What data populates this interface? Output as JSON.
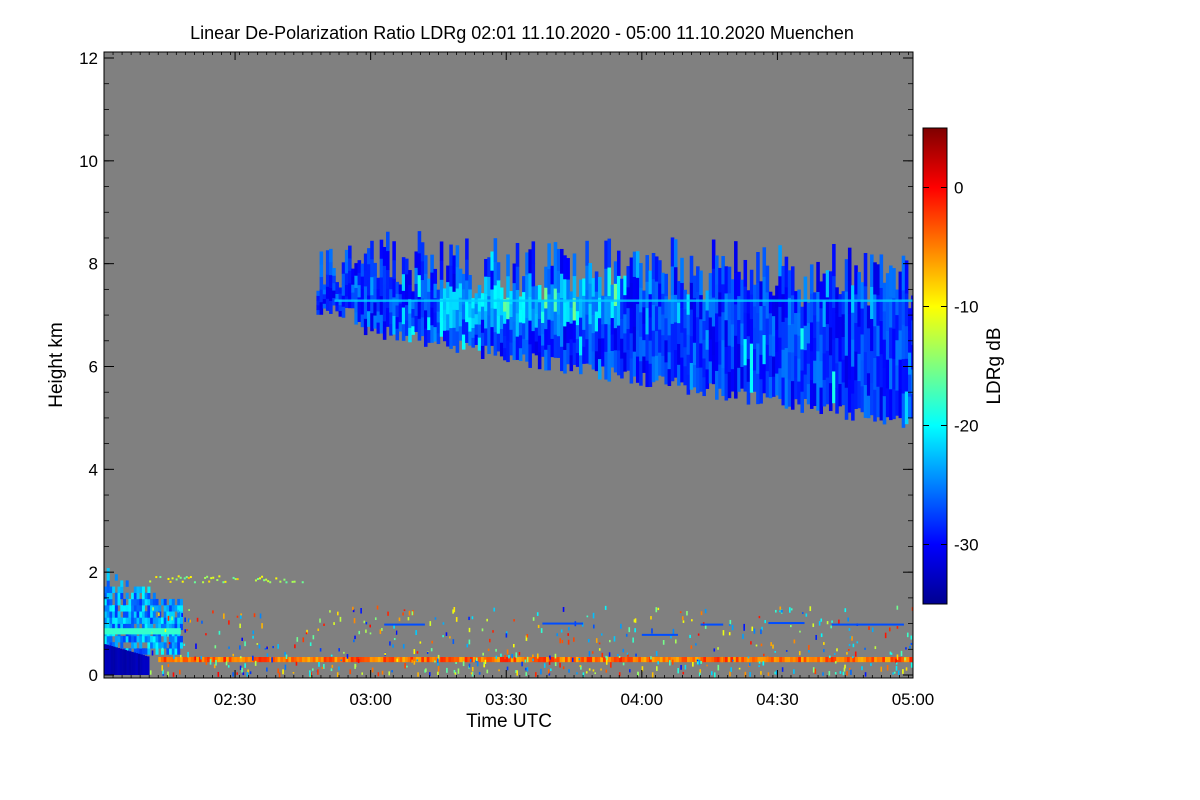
{
  "chart_data": {
    "type": "heatmap",
    "title": "Linear De-Polarization Ratio LDRg   02:01 11.10.2020 - 05:00 11.10.2020 Muenchen",
    "xlabel": "Time UTC",
    "ylabel": "Height km",
    "colorbar_label": "LDRg dB",
    "x_range_minutes": [
      121,
      300
    ],
    "x_ticks": [
      {
        "minute": 150,
        "label": "02:30"
      },
      {
        "minute": 180,
        "label": "03:00"
      },
      {
        "minute": 210,
        "label": "03:30"
      },
      {
        "minute": 240,
        "label": "04:00"
      },
      {
        "minute": 270,
        "label": "04:30"
      },
      {
        "minute": 300,
        "label": "05:00"
      }
    ],
    "ylim": [
      0,
      12
    ],
    "y_ticks": [
      0,
      2,
      4,
      6,
      8,
      10,
      12
    ],
    "y_tick_labels": [
      "0",
      "2",
      "4",
      "6",
      "8",
      "10",
      "12"
    ],
    "colorbar_range": [
      -35,
      5
    ],
    "colorbar_ticks": [
      0,
      -10,
      -20,
      -30
    ],
    "colorbar_tick_labels": [
      "0",
      "-10",
      "-20",
      "-30"
    ],
    "background_color": "#808080",
    "features": [
      {
        "name": "upper cloud layer",
        "minute_start": 168,
        "minute_end": 300,
        "top_km": [
          8.7,
          8.4
        ],
        "base_km": [
          7.0,
          4.9
        ],
        "ldr_db": -28
      },
      {
        "name": "thin bright band in upper cloud",
        "minute_start": 168,
        "minute_end": 300,
        "height_km": 7.28,
        "ldr_db": -22
      },
      {
        "name": "boundary layer aerosol",
        "minute_start": 121,
        "minute_end": 138,
        "top_km": 2.0,
        "base_km": 0.2,
        "ldr_db": -24
      },
      {
        "name": "elevated aerosol layer",
        "minute_start": 131,
        "minute_end": 165,
        "height_km": 1.85,
        "ldr_db": -12
      },
      {
        "name": "low aerosol layer",
        "minute_start": 121,
        "minute_end": 138,
        "height_km": 0.85,
        "ldr_db": -18
      },
      {
        "name": "near-surface band",
        "minute_start": 133,
        "minute_end": 300,
        "height_km": 0.3,
        "ldr_db": -4
      },
      {
        "name": "surface dark region",
        "minute_start": 121,
        "minute_end": 131,
        "top_km": 0.6,
        "base_km": 0.0,
        "ldr_db": -34
      }
    ]
  }
}
